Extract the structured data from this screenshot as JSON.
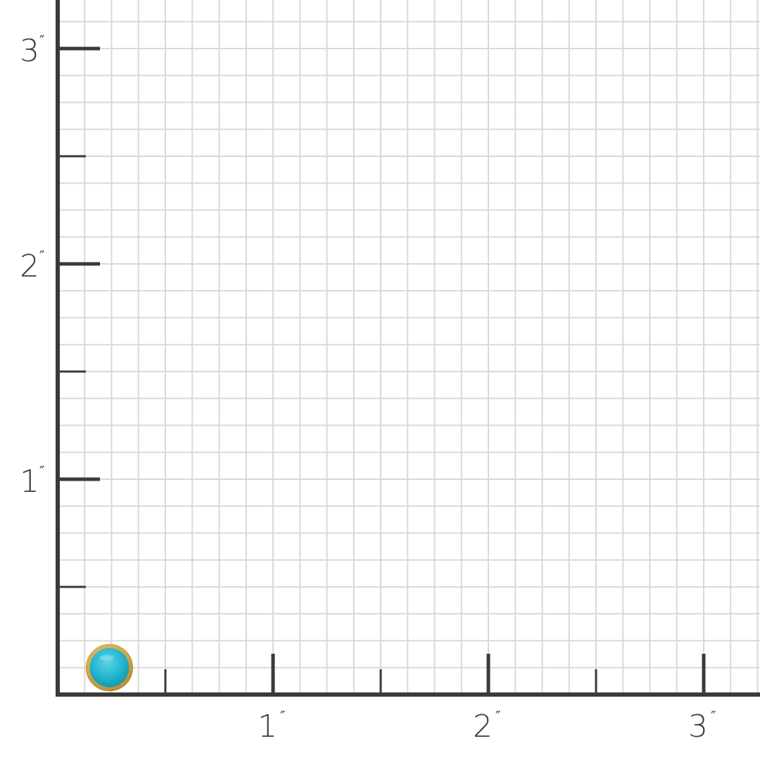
{
  "colors": {
    "axis": "#3a3a3a",
    "grid": "#d9d9d9",
    "stone": "#25b6cf",
    "bezel": "#d4a94a",
    "background": "#ffffff"
  },
  "scale": {
    "unit": "inch",
    "subdivisions_per_unit": 8,
    "x_max": 3.5,
    "y_max": 3.2
  },
  "x_axis": {
    "labels": [
      {
        "value": 1,
        "text": "1",
        "mark": "″"
      },
      {
        "value": 2,
        "text": "2",
        "mark": "″"
      },
      {
        "value": 3,
        "text": "3",
        "mark": "″"
      }
    ]
  },
  "y_axis": {
    "labels": [
      {
        "value": 1,
        "text": "1",
        "mark": "″"
      },
      {
        "value": 2,
        "text": "2",
        "mark": "″"
      },
      {
        "value": 3,
        "text": "3",
        "mark": "″"
      }
    ]
  },
  "product": {
    "name": "turquoise-stud-earring",
    "diameter_in": 0.22,
    "center_in": [
      0.24,
      0.125
    ]
  }
}
